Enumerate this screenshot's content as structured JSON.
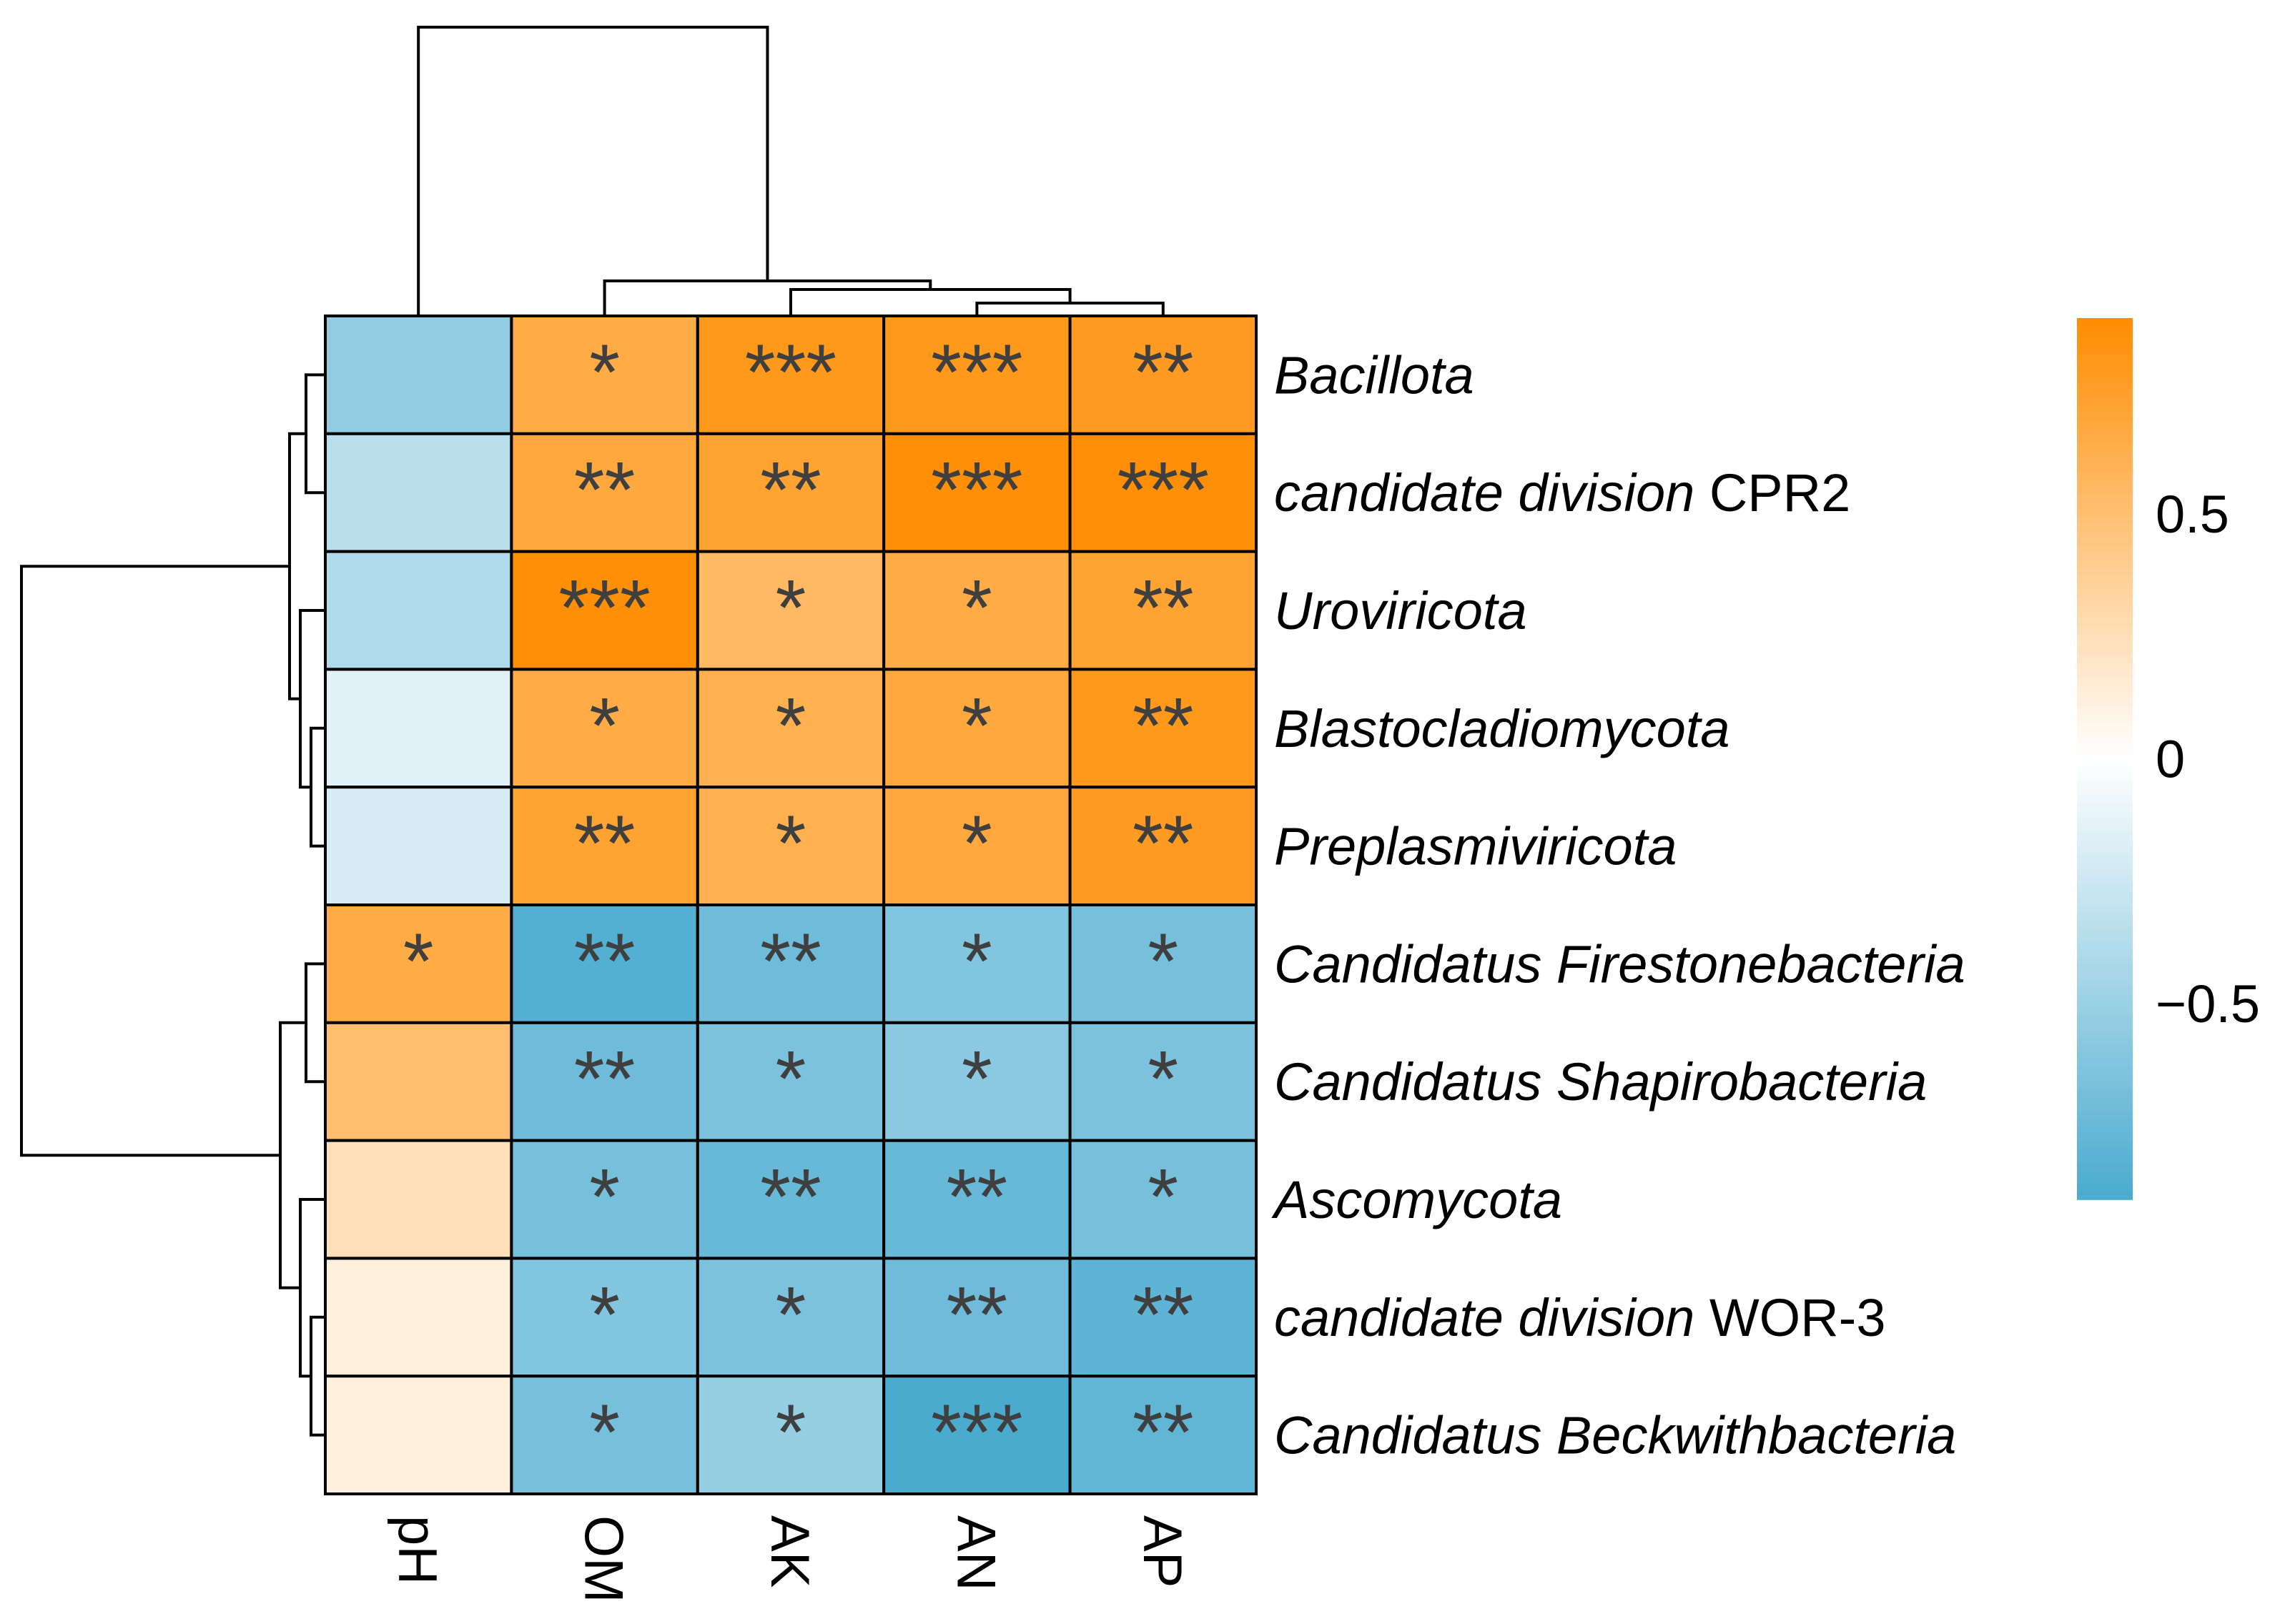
{
  "chart_data": {
    "type": "heatmap",
    "rows": [
      {
        "plain_prefix": "",
        "italic": "Bacillota",
        "plain_suffix": ""
      },
      {
        "plain_prefix": "",
        "italic": "candidate division",
        "plain_suffix": " CPR2"
      },
      {
        "plain_prefix": "",
        "italic": "Uroviricota",
        "plain_suffix": ""
      },
      {
        "plain_prefix": "",
        "italic": "Blastocladiomycota",
        "plain_suffix": ""
      },
      {
        "plain_prefix": "",
        "italic": "Preplasmiviricota",
        "plain_suffix": ""
      },
      {
        "plain_prefix": "",
        "italic": "Candidatus Firestonebacteria",
        "plain_suffix": ""
      },
      {
        "plain_prefix": "",
        "italic": "Candidatus Shapirobacteria",
        "plain_suffix": ""
      },
      {
        "plain_prefix": "",
        "italic": "Ascomycota",
        "plain_suffix": ""
      },
      {
        "plain_prefix": "",
        "italic": "candidate division",
        "plain_suffix": " WOR-3"
      },
      {
        "plain_prefix": "",
        "italic": "Candidatus Beckwithbacteria",
        "plain_suffix": ""
      }
    ],
    "columns": [
      "pH",
      "OM",
      "AK",
      "AN",
      "AP"
    ],
    "values": [
      [
        -0.55,
        0.65,
        0.8,
        0.8,
        0.78
      ],
      [
        -0.35,
        0.68,
        0.72,
        0.88,
        0.88
      ],
      [
        -0.4,
        0.88,
        0.55,
        0.65,
        0.72
      ],
      [
        -0.15,
        0.65,
        0.62,
        0.68,
        0.8
      ],
      [
        -0.2,
        0.72,
        0.62,
        0.68,
        0.78
      ],
      [
        0.65,
        -0.85,
        -0.72,
        -0.62,
        -0.68
      ],
      [
        0.5,
        -0.72,
        -0.65,
        -0.58,
        -0.65
      ],
      [
        0.25,
        -0.68,
        -0.75,
        -0.75,
        -0.68
      ],
      [
        0.12,
        -0.62,
        -0.65,
        -0.72,
        -0.8
      ],
      [
        0.12,
        -0.68,
        -0.52,
        -0.9,
        -0.78
      ]
    ],
    "significance": [
      [
        "",
        "*",
        "***",
        "***",
        "**"
      ],
      [
        "",
        "**",
        "**",
        "***",
        "***"
      ],
      [
        "",
        "***",
        "*",
        "*",
        "**"
      ],
      [
        "",
        "*",
        "*",
        "*",
        "**"
      ],
      [
        "",
        "**",
        "*",
        "*",
        "**"
      ],
      [
        "*",
        "**",
        "**",
        "*",
        "*"
      ],
      [
        "",
        "**",
        "*",
        "*",
        "*"
      ],
      [
        "",
        "*",
        "**",
        "**",
        "*"
      ],
      [
        "",
        "*",
        "*",
        "**",
        "**"
      ],
      [
        "",
        "*",
        "*",
        "***",
        "**"
      ]
    ],
    "color_scale": {
      "min": -0.9,
      "max": 0.9,
      "low_color": "#4aabcf",
      "mid_color": "#ffffff",
      "high_color": "#ff8c00",
      "ticks": [
        {
          "value": 0.5,
          "label": "0.5"
        },
        {
          "value": 0,
          "label": "0"
        },
        {
          "value": -0.5,
          "label": "−0.5"
        }
      ]
    },
    "dendrograms": {
      "row": true,
      "column": true
    }
  }
}
